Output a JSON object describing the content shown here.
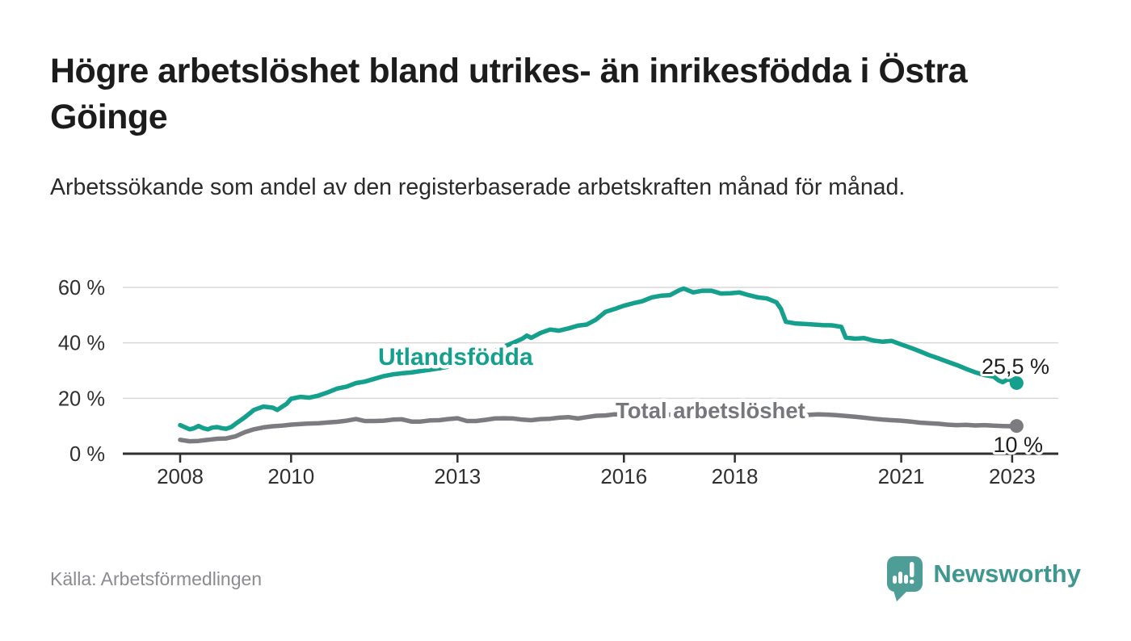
{
  "page": {
    "title": "Högre arbetslöshet bland utrikes- än inrikesfödda i Östra Göinge",
    "subtitle": "Arbetssökande som andel av den registerbaserade arbetskraften månad för månad.",
    "source": "Källa: Arbetsförmedlingen",
    "brand": {
      "name": "Newsworthy",
      "icon": "bar-chart-speech-bubble-icon",
      "wordmark_color": "#3f988f",
      "icon_color": "#4e9d96"
    }
  },
  "chart_data": {
    "type": "line",
    "title": "Högre arbetslöshet bland utrikes- än inrikesfödda i Östra Göinge",
    "subtitle": "Arbetssökande som andel av den registerbaserade arbetskraften månad för månad.",
    "grid": true,
    "legend_position": "inline-labels",
    "x_axis": {
      "unit": "year",
      "tick_values": [
        2008,
        2010,
        2013,
        2016,
        2018,
        2021,
        2023
      ],
      "labels": [
        "2008",
        "2010",
        "2013",
        "2016",
        "2018",
        "2021",
        "2023"
      ],
      "range": [
        2006.97,
        2023.85
      ]
    },
    "y_axis": {
      "unit": "percent",
      "tick_values": [
        0,
        20,
        40,
        60
      ],
      "labels": [
        "0 %",
        "20 %",
        "40 %",
        "60 %"
      ],
      "range": [
        0,
        62
      ]
    },
    "colors": {
      "utlandsfodda": "#14a08c",
      "total": "#7c7c80",
      "gridline": "#d8d8d8",
      "axis": "#2f2f2f",
      "tick_text": "#303030",
      "end_label_text": "#1e1e1e"
    },
    "series": [
      {
        "name": "Utlandsfödda",
        "color": "#14a08c",
        "label_color": "#14a08c",
        "end_label": "25,5 %",
        "end_value": 25.5,
        "points": [
          [
            2008.0,
            10.3
          ],
          [
            2008.08,
            9.6
          ],
          [
            2008.17,
            8.8
          ],
          [
            2008.25,
            9.2
          ],
          [
            2008.33,
            10.0
          ],
          [
            2008.42,
            9.2
          ],
          [
            2008.5,
            8.8
          ],
          [
            2008.58,
            9.4
          ],
          [
            2008.67,
            9.6
          ],
          [
            2008.75,
            9.2
          ],
          [
            2008.83,
            9.0
          ],
          [
            2008.92,
            9.6
          ],
          [
            2009.0,
            10.8
          ],
          [
            2009.17,
            13.2
          ],
          [
            2009.33,
            15.8
          ],
          [
            2009.5,
            17.0
          ],
          [
            2009.67,
            16.6
          ],
          [
            2009.75,
            15.8
          ],
          [
            2009.92,
            18.0
          ],
          [
            2010.0,
            19.8
          ],
          [
            2010.17,
            20.5
          ],
          [
            2010.33,
            20.2
          ],
          [
            2010.5,
            21.0
          ],
          [
            2010.67,
            22.2
          ],
          [
            2010.83,
            23.5
          ],
          [
            2011.0,
            24.2
          ],
          [
            2011.17,
            25.5
          ],
          [
            2011.33,
            26.0
          ],
          [
            2011.5,
            27.0
          ],
          [
            2011.67,
            28.0
          ],
          [
            2011.83,
            28.6
          ],
          [
            2012.0,
            29.0
          ],
          [
            2012.17,
            29.3
          ],
          [
            2012.33,
            29.8
          ],
          [
            2012.5,
            30.3
          ],
          [
            2012.67,
            30.8
          ],
          [
            2012.83,
            31.4
          ],
          [
            2013.0,
            32.2
          ],
          [
            2013.17,
            33.2
          ],
          [
            2013.33,
            34.4
          ],
          [
            2013.5,
            35.6
          ],
          [
            2013.67,
            37.0
          ],
          [
            2013.83,
            38.6
          ],
          [
            2014.0,
            40.0
          ],
          [
            2014.17,
            41.5
          ],
          [
            2014.25,
            42.6
          ],
          [
            2014.33,
            41.8
          ],
          [
            2014.5,
            43.6
          ],
          [
            2014.67,
            44.8
          ],
          [
            2014.83,
            44.4
          ],
          [
            2015.0,
            45.2
          ],
          [
            2015.17,
            46.2
          ],
          [
            2015.33,
            46.6
          ],
          [
            2015.5,
            48.4
          ],
          [
            2015.67,
            51.2
          ],
          [
            2015.83,
            52.2
          ],
          [
            2016.0,
            53.4
          ],
          [
            2016.17,
            54.3
          ],
          [
            2016.33,
            55.0
          ],
          [
            2016.5,
            56.4
          ],
          [
            2016.67,
            57.0
          ],
          [
            2016.83,
            57.2
          ],
          [
            2017.0,
            59.0
          ],
          [
            2017.08,
            59.6
          ],
          [
            2017.25,
            58.2
          ],
          [
            2017.42,
            58.8
          ],
          [
            2017.58,
            58.8
          ],
          [
            2017.75,
            57.8
          ],
          [
            2017.92,
            57.9
          ],
          [
            2018.08,
            58.2
          ],
          [
            2018.25,
            57.2
          ],
          [
            2018.42,
            56.4
          ],
          [
            2018.58,
            56.0
          ],
          [
            2018.75,
            54.6
          ],
          [
            2018.83,
            52.3
          ],
          [
            2018.92,
            47.6
          ],
          [
            2019.08,
            47.0
          ],
          [
            2019.25,
            46.8
          ],
          [
            2019.42,
            46.6
          ],
          [
            2019.58,
            46.4
          ],
          [
            2019.75,
            46.3
          ],
          [
            2019.92,
            45.8
          ],
          [
            2020.0,
            41.9
          ],
          [
            2020.17,
            41.5
          ],
          [
            2020.33,
            41.7
          ],
          [
            2020.5,
            40.8
          ],
          [
            2020.67,
            40.4
          ],
          [
            2020.83,
            40.7
          ],
          [
            2021.0,
            39.4
          ],
          [
            2021.17,
            38.2
          ],
          [
            2021.33,
            37.0
          ],
          [
            2021.5,
            35.6
          ],
          [
            2021.67,
            34.4
          ],
          [
            2021.83,
            33.2
          ],
          [
            2022.0,
            32.0
          ],
          [
            2022.17,
            30.6
          ],
          [
            2022.33,
            29.4
          ],
          [
            2022.5,
            28.4
          ],
          [
            2022.67,
            27.8
          ],
          [
            2022.75,
            26.5
          ],
          [
            2022.83,
            25.8
          ],
          [
            2022.92,
            26.8
          ],
          [
            2023.0,
            26.4
          ],
          [
            2023.08,
            25.5
          ]
        ]
      },
      {
        "name": "Total arbetslöshet",
        "color": "#7c7c80",
        "label_color": "#76777b",
        "end_label": "10 %",
        "end_value": 10,
        "points": [
          [
            2008.0,
            5.0
          ],
          [
            2008.17,
            4.5
          ],
          [
            2008.33,
            4.6
          ],
          [
            2008.5,
            5.0
          ],
          [
            2008.67,
            5.4
          ],
          [
            2008.83,
            5.5
          ],
          [
            2009.0,
            6.3
          ],
          [
            2009.17,
            7.8
          ],
          [
            2009.33,
            8.8
          ],
          [
            2009.5,
            9.5
          ],
          [
            2009.67,
            9.9
          ],
          [
            2009.83,
            10.1
          ],
          [
            2010.0,
            10.5
          ],
          [
            2010.17,
            10.7
          ],
          [
            2010.33,
            10.9
          ],
          [
            2010.5,
            11.0
          ],
          [
            2010.67,
            11.3
          ],
          [
            2010.83,
            11.5
          ],
          [
            2011.0,
            11.9
          ],
          [
            2011.17,
            12.5
          ],
          [
            2011.33,
            11.8
          ],
          [
            2011.5,
            11.8
          ],
          [
            2011.67,
            11.9
          ],
          [
            2011.83,
            12.3
          ],
          [
            2012.0,
            12.4
          ],
          [
            2012.17,
            11.6
          ],
          [
            2012.33,
            11.6
          ],
          [
            2012.5,
            12.0
          ],
          [
            2012.67,
            12.1
          ],
          [
            2012.83,
            12.5
          ],
          [
            2013.0,
            12.8
          ],
          [
            2013.17,
            11.8
          ],
          [
            2013.33,
            11.8
          ],
          [
            2013.5,
            12.2
          ],
          [
            2013.67,
            12.7
          ],
          [
            2013.83,
            12.8
          ],
          [
            2014.0,
            12.7
          ],
          [
            2014.17,
            12.3
          ],
          [
            2014.33,
            12.1
          ],
          [
            2014.5,
            12.5
          ],
          [
            2014.67,
            12.6
          ],
          [
            2014.83,
            13.0
          ],
          [
            2015.0,
            13.2
          ],
          [
            2015.17,
            12.7
          ],
          [
            2015.33,
            13.2
          ],
          [
            2015.5,
            13.7
          ],
          [
            2015.67,
            13.8
          ],
          [
            2015.83,
            14.2
          ],
          [
            2016.0,
            14.0
          ],
          [
            2016.17,
            13.8
          ],
          [
            2016.33,
            14.1
          ],
          [
            2016.5,
            14.3
          ],
          [
            2016.67,
            13.9
          ],
          [
            2016.83,
            14.1
          ],
          [
            2017.0,
            14.2
          ],
          [
            2017.17,
            13.9
          ],
          [
            2017.33,
            14.1
          ],
          [
            2017.5,
            14.0
          ],
          [
            2017.67,
            13.8
          ],
          [
            2017.83,
            13.9
          ],
          [
            2018.0,
            13.8
          ],
          [
            2018.17,
            13.6
          ],
          [
            2018.33,
            13.8
          ],
          [
            2018.5,
            13.7
          ],
          [
            2018.67,
            13.5
          ],
          [
            2018.83,
            13.4
          ],
          [
            2019.0,
            13.6
          ],
          [
            2019.17,
            13.8
          ],
          [
            2019.33,
            14.0
          ],
          [
            2019.5,
            14.2
          ],
          [
            2019.67,
            14.1
          ],
          [
            2019.83,
            13.9
          ],
          [
            2020.0,
            13.6
          ],
          [
            2020.17,
            13.3
          ],
          [
            2020.33,
            13.0
          ],
          [
            2020.5,
            12.6
          ],
          [
            2020.67,
            12.3
          ],
          [
            2020.83,
            12.1
          ],
          [
            2021.0,
            11.9
          ],
          [
            2021.17,
            11.6
          ],
          [
            2021.33,
            11.2
          ],
          [
            2021.5,
            11.0
          ],
          [
            2021.67,
            10.8
          ],
          [
            2021.83,
            10.5
          ],
          [
            2022.0,
            10.3
          ],
          [
            2022.17,
            10.4
          ],
          [
            2022.33,
            10.2
          ],
          [
            2022.5,
            10.3
          ],
          [
            2022.67,
            10.1
          ],
          [
            2022.83,
            10.0
          ],
          [
            2023.0,
            9.9
          ],
          [
            2023.08,
            10.0
          ]
        ]
      }
    ]
  }
}
